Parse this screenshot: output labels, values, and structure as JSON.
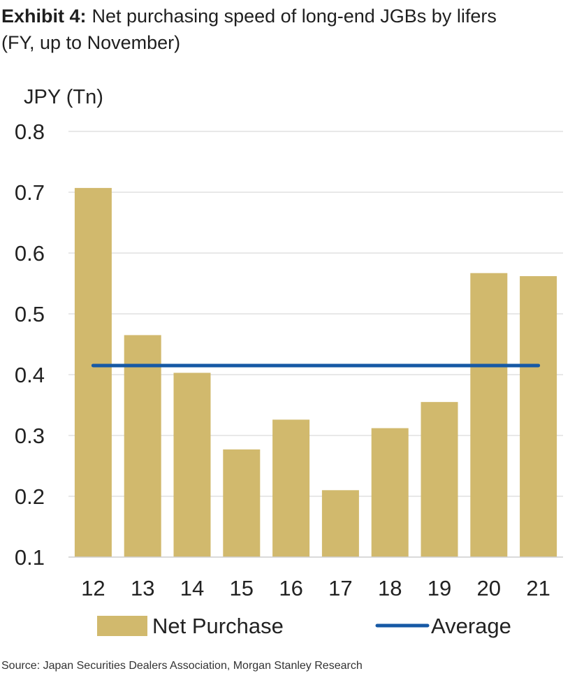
{
  "header": {
    "exhibit_label": "Exhibit 4:",
    "title_line1": "Net purchasing speed of long-end JGBs by lifers",
    "title_line2": "(FY, up to November)"
  },
  "footer": {
    "source": "Source: Japan Securities Dealers Association, Morgan Stanley Research"
  },
  "chart_data": {
    "type": "bar",
    "title": "Net purchasing speed of long-end JGBs by lifers",
    "subtitle": "(FY, up to November)",
    "ylabel": "JPY (Tn)",
    "xlabel": "",
    "categories": [
      "12",
      "13",
      "14",
      "15",
      "16",
      "17",
      "18",
      "19",
      "20",
      "21"
    ],
    "series": [
      {
        "name": "Net Purchase",
        "type": "bar",
        "color": "#d1b96d",
        "values": [
          0.707,
          0.465,
          0.403,
          0.277,
          0.326,
          0.21,
          0.312,
          0.355,
          0.567,
          0.562
        ]
      },
      {
        "name": "Average",
        "type": "line",
        "color": "#1659a5",
        "values": [
          0.415,
          0.415,
          0.415,
          0.415,
          0.415,
          0.415,
          0.415,
          0.415,
          0.415,
          0.415
        ]
      }
    ],
    "ylim": [
      0.1,
      0.8
    ],
    "yticks": [
      "0.1",
      "0.2",
      "0.3",
      "0.4",
      "0.5",
      "0.6",
      "0.7",
      "0.8"
    ],
    "grid": true,
    "legend_position": "bottom"
  }
}
